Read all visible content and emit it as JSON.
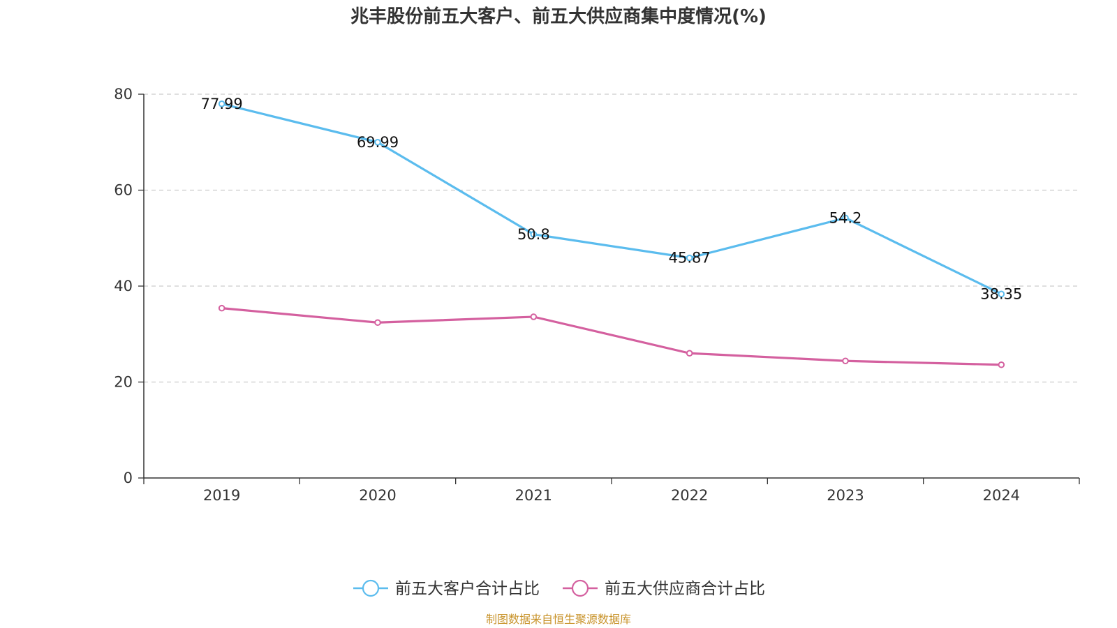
{
  "chart_data": {
    "type": "line",
    "title": "兆丰股份前五大客户、前五大供应商集中度情况(%)",
    "categories": [
      "2019",
      "2020",
      "2021",
      "2022",
      "2023",
      "2024"
    ],
    "ylim": [
      0,
      80
    ],
    "yticks": [
      0,
      20,
      40,
      60,
      80
    ],
    "grid": true,
    "legend_position": "bottom",
    "series": [
      {
        "name": "前五大客户合计占比",
        "color": "#5bbcee",
        "values": [
          77.99,
          69.99,
          50.8,
          45.87,
          54.2,
          38.35
        ],
        "show_labels": true
      },
      {
        "name": "前五大供应商合计占比",
        "color": "#d4609f",
        "values": [
          35.4,
          32.4,
          33.6,
          26.0,
          24.4,
          23.6
        ],
        "show_labels": false
      }
    ]
  },
  "source": "制图数据来自恒生聚源数据库"
}
